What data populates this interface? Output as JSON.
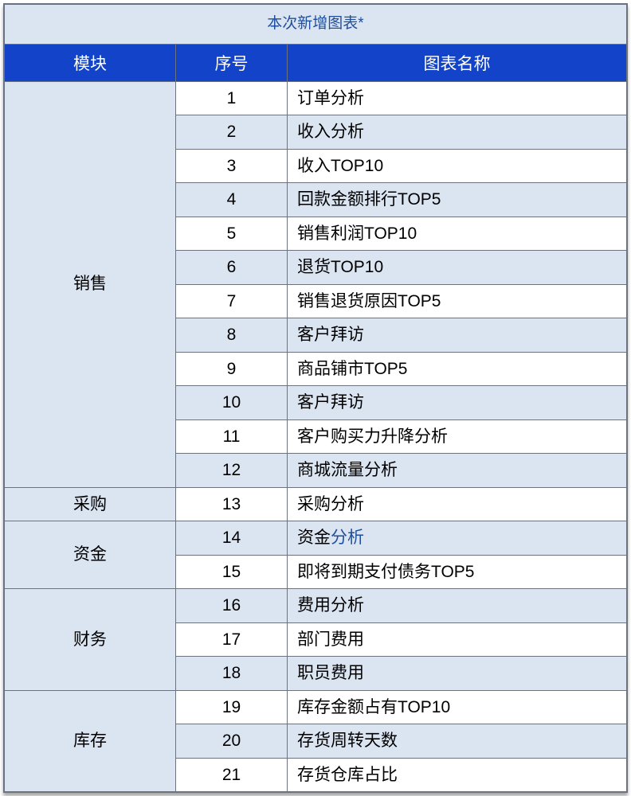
{
  "colors": {
    "title_bg": "#dbe5f1",
    "title_text": "#1f4e9c",
    "header_bg": "#1243c9",
    "header_text": "#ffffff",
    "row_bg_a": "#ffffff",
    "row_bg_b": "#dbe5f1",
    "module_bg": "#dbe5f1",
    "border": "#6b7280",
    "text": "#000000",
    "link": "#1f4e9c"
  },
  "title": "本次新增图表*",
  "columns": {
    "module": "模块",
    "seq": "序号",
    "name": "图表名称"
  },
  "groups": [
    {
      "module": "销售",
      "rows": [
        {
          "seq": "1",
          "name": "订单分析"
        },
        {
          "seq": "2",
          "name": "收入分析"
        },
        {
          "seq": "3",
          "name": "收入TOP10"
        },
        {
          "seq": "4",
          "name": "回款金额排行TOP5"
        },
        {
          "seq": "5",
          "name": "销售利润TOP10"
        },
        {
          "seq": "6",
          "name": "退货TOP10"
        },
        {
          "seq": "7",
          "name": "销售退货原因TOP5"
        },
        {
          "seq": "8",
          "name": "客户拜访"
        },
        {
          "seq": "9",
          "name": "商品铺市TOP5"
        },
        {
          "seq": "10",
          "name": "客户拜访"
        },
        {
          "seq": "11",
          "name": "客户购买力升降分析"
        },
        {
          "seq": "12",
          "name": "商城流量分析"
        }
      ]
    },
    {
      "module": "采购",
      "rows": [
        {
          "seq": "13",
          "name": "采购分析"
        }
      ]
    },
    {
      "module": "资金",
      "rows": [
        {
          "seq": "14",
          "name_html": [
            {
              "t": "资金",
              "color": "text"
            },
            {
              "t": "分析",
              "color": "link"
            }
          ]
        },
        {
          "seq": "15",
          "name": "即将到期支付债务TOP5"
        }
      ]
    },
    {
      "module": "财务",
      "rows": [
        {
          "seq": "16",
          "name": "费用分析"
        },
        {
          "seq": "17",
          "name": "部门费用"
        },
        {
          "seq": "18",
          "name": "职员费用"
        }
      ]
    },
    {
      "module": "库存",
      "rows": [
        {
          "seq": "19",
          "name": "库存金额占有TOP10"
        },
        {
          "seq": "20",
          "name": "存货周转天数"
        },
        {
          "seq": "21",
          "name": "存货仓库占比"
        }
      ]
    }
  ]
}
